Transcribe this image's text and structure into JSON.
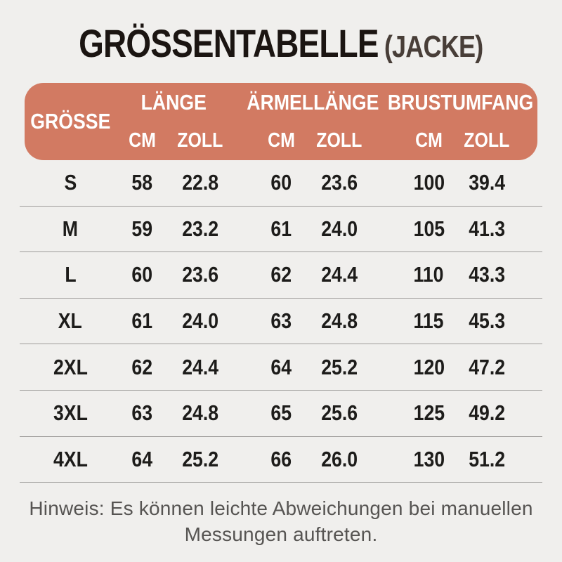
{
  "title": {
    "main": "GRÖSSENTABELLE",
    "suffix": "(JACKE)"
  },
  "colors": {
    "page_background": "#f0efed",
    "header_background": "#d27a62",
    "header_text": "#ffffff",
    "body_text": "#1d1c1a",
    "divider": "#9e9c9a",
    "note_text": "#565452"
  },
  "table": {
    "size_label": "GRÖSSE",
    "groups": [
      {
        "label": "LÄNGE",
        "units": [
          "CM",
          "ZOLL"
        ]
      },
      {
        "label": "ÄRMELLÄNGE",
        "units": [
          "CM",
          "ZOLL"
        ]
      },
      {
        "label": "BRUSTUMFANG",
        "units": [
          "CM",
          "ZOLL"
        ]
      }
    ],
    "rows": [
      {
        "size": "S",
        "values": [
          "58",
          "22.8",
          "60",
          "23.6",
          "100",
          "39.4"
        ]
      },
      {
        "size": "M",
        "values": [
          "59",
          "23.2",
          "61",
          "24.0",
          "105",
          "41.3"
        ]
      },
      {
        "size": "L",
        "values": [
          "60",
          "23.6",
          "62",
          "24.4",
          "110",
          "43.3"
        ]
      },
      {
        "size": "XL",
        "values": [
          "61",
          "24.0",
          "63",
          "24.8",
          "115",
          "45.3"
        ]
      },
      {
        "size": "2XL",
        "values": [
          "62",
          "24.4",
          "64",
          "25.2",
          "120",
          "47.2"
        ]
      },
      {
        "size": "3XL",
        "values": [
          "63",
          "24.8",
          "65",
          "25.6",
          "125",
          "49.2"
        ]
      },
      {
        "size": "4XL",
        "values": [
          "64",
          "25.2",
          "66",
          "26.0",
          "130",
          "51.2"
        ]
      }
    ]
  },
  "note": {
    "lines": [
      "Hinweis: Es können leichte Abweichungen bei manuellen",
      "Messungen auftreten."
    ]
  },
  "chart_data": {
    "type": "table",
    "title": "GRÖSSENTABELLE (JACKE)",
    "columns": [
      "GRÖSSE",
      "LÄNGE CM",
      "LÄNGE ZOLL",
      "ÄRMELLÄNGE CM",
      "ÄRMELLÄNGE ZOLL",
      "BRUSTUMFANG CM",
      "BRUSTUMFANG ZOLL"
    ],
    "rows": [
      [
        "S",
        58,
        22.8,
        60,
        23.6,
        100,
        39.4
      ],
      [
        "M",
        59,
        23.2,
        61,
        24.0,
        105,
        41.3
      ],
      [
        "L",
        60,
        23.6,
        62,
        24.4,
        110,
        43.3
      ],
      [
        "XL",
        61,
        24.0,
        63,
        24.8,
        115,
        45.3
      ],
      [
        "2XL",
        62,
        24.4,
        64,
        25.2,
        120,
        47.2
      ],
      [
        "3XL",
        63,
        24.8,
        65,
        25.6,
        125,
        49.2
      ],
      [
        "4XL",
        64,
        25.2,
        66,
        26.0,
        130,
        51.2
      ]
    ],
    "footnote": "Hinweis: Es können leichte Abweichungen bei manuellen Messungen auftreten."
  }
}
